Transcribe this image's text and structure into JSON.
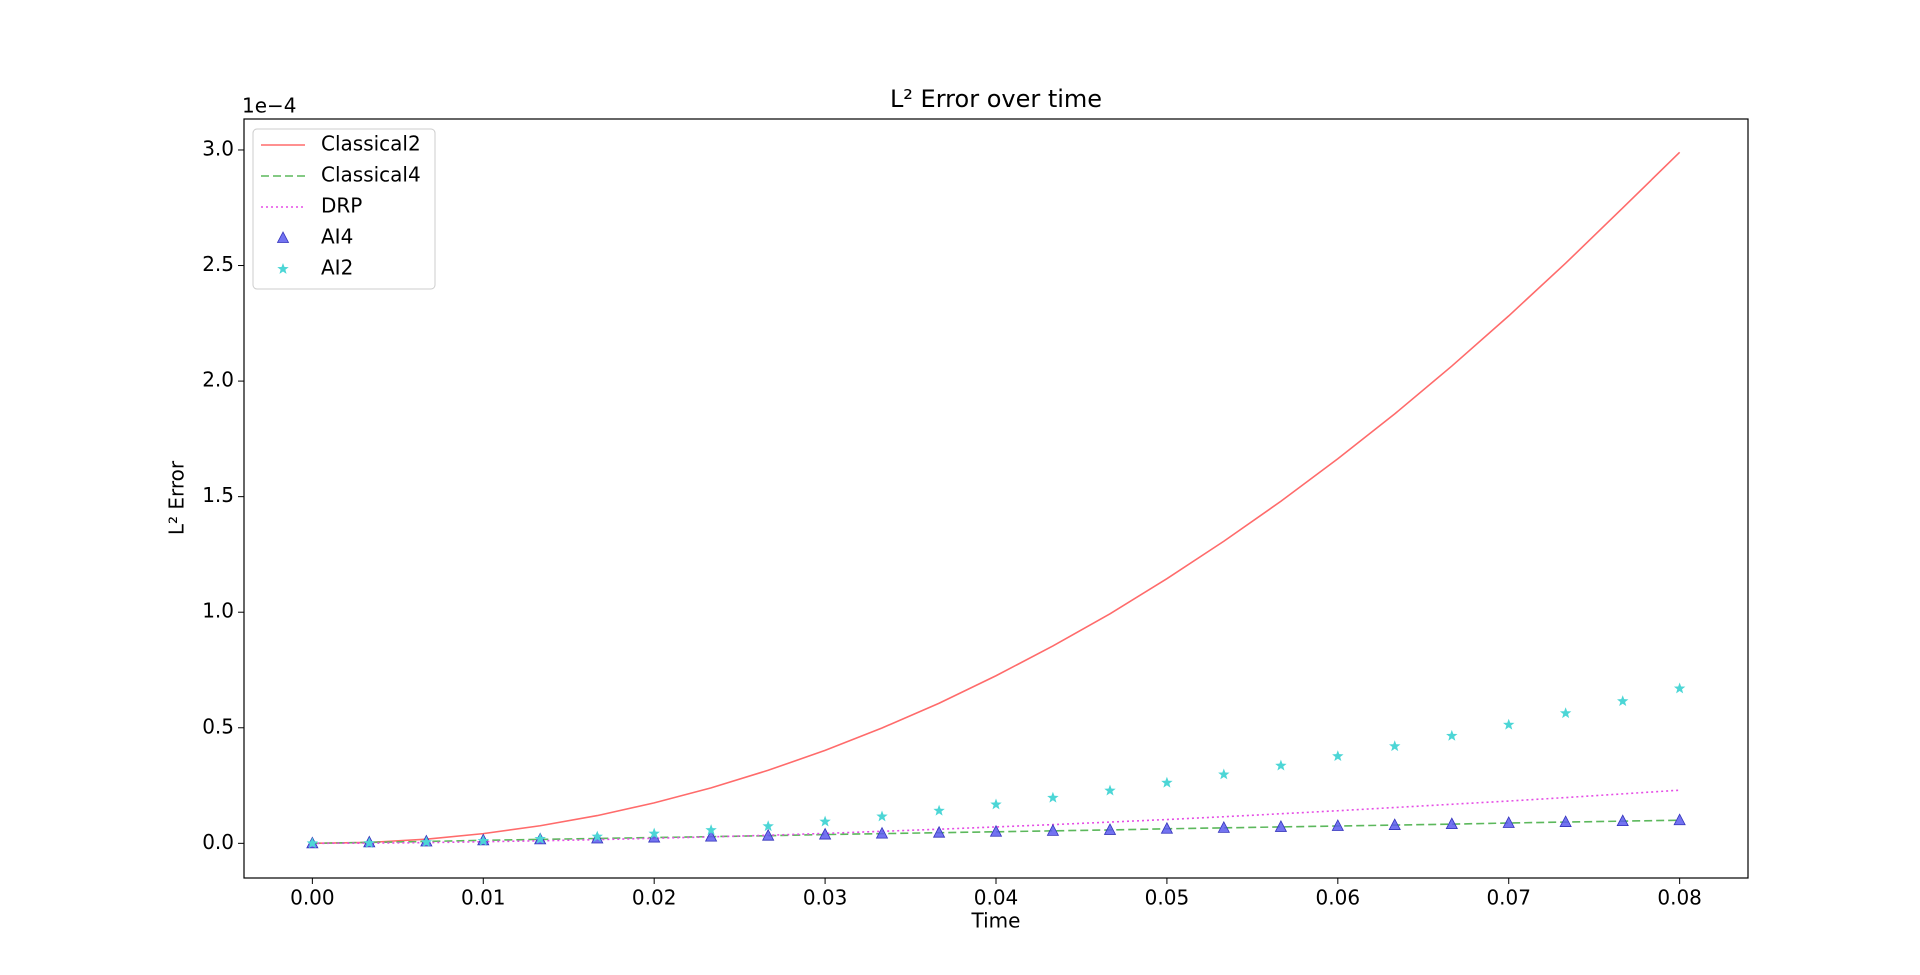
{
  "chart_data": {
    "type": "line",
    "title": "L² Error over time",
    "xlabel": "Time",
    "ylabel": "L² Error",
    "y_offset_label": "1e−4",
    "x": [
      0,
      0.00333,
      0.00667,
      0.01,
      0.01333,
      0.01667,
      0.02,
      0.02333,
      0.02667,
      0.03,
      0.03333,
      0.03667,
      0.04,
      0.04333,
      0.04667,
      0.05,
      0.05333,
      0.05667,
      0.06,
      0.06333,
      0.06667,
      0.07,
      0.07333,
      0.07667,
      0.08
    ],
    "series": [
      {
        "name": "Classical2",
        "color": "#ff6b6b",
        "linestyle": "solid",
        "values": [
          0,
          0.004,
          0.018,
          0.042,
          0.076,
          0.12,
          0.175,
          0.24,
          0.316,
          0.402,
          0.499,
          0.606,
          0.725,
          0.854,
          0.993,
          1.145,
          1.307,
          1.48,
          1.664,
          1.858,
          2.065,
          2.282,
          2.51,
          2.749,
          2.99
        ]
      },
      {
        "name": "Classical4",
        "color": "#5cb85c",
        "linestyle": "dashed",
        "values": [
          0,
          0.004,
          0.008,
          0.013,
          0.017,
          0.021,
          0.025,
          0.029,
          0.033,
          0.038,
          0.042,
          0.046,
          0.05,
          0.054,
          0.058,
          0.063,
          0.067,
          0.071,
          0.075,
          0.079,
          0.083,
          0.088,
          0.092,
          0.096,
          0.1
        ]
      },
      {
        "name": "DRP",
        "color": "#e54de5",
        "linestyle": "dotted",
        "values": [
          0,
          0.001,
          0.003,
          0.007,
          0.011,
          0.016,
          0.022,
          0.028,
          0.035,
          0.043,
          0.052,
          0.061,
          0.071,
          0.081,
          0.092,
          0.103,
          0.115,
          0.128,
          0.141,
          0.155,
          0.169,
          0.183,
          0.198,
          0.214,
          0.23
        ]
      },
      {
        "name": "AI4",
        "color": "#5a5aee",
        "marker": "triangle",
        "values": [
          0,
          0.004,
          0.008,
          0.013,
          0.017,
          0.021,
          0.025,
          0.029,
          0.033,
          0.038,
          0.042,
          0.046,
          0.05,
          0.054,
          0.058,
          0.063,
          0.067,
          0.071,
          0.075,
          0.079,
          0.083,
          0.088,
          0.092,
          0.096,
          0.1
        ]
      },
      {
        "name": "AI2",
        "color": "#4cd6d6",
        "marker": "star",
        "values": [
          0,
          0.001,
          0.005,
          0.01,
          0.019,
          0.029,
          0.042,
          0.057,
          0.074,
          0.094,
          0.116,
          0.141,
          0.168,
          0.197,
          0.228,
          0.262,
          0.298,
          0.336,
          0.377,
          0.42,
          0.465,
          0.513,
          0.563,
          0.615,
          0.67
        ]
      }
    ],
    "xlim": [
      -0.004,
      0.084
    ],
    "ylim": [
      -0.15,
      3.134
    ],
    "xticks": [
      {
        "value": 0,
        "label": "0.00"
      },
      {
        "value": 0.01,
        "label": "0.01"
      },
      {
        "value": 0.02,
        "label": "0.02"
      },
      {
        "value": 0.03,
        "label": "0.03"
      },
      {
        "value": 0.04,
        "label": "0.04"
      },
      {
        "value": 0.05,
        "label": "0.05"
      },
      {
        "value": 0.06,
        "label": "0.06"
      },
      {
        "value": 0.07,
        "label": "0.07"
      },
      {
        "value": 0.08,
        "label": "0.08"
      }
    ],
    "yticks": [
      {
        "value": 0,
        "label": "0.0"
      },
      {
        "value": 0.5,
        "label": "0.5"
      },
      {
        "value": 1,
        "label": "1.0"
      },
      {
        "value": 1.5,
        "label": "1.5"
      },
      {
        "value": 2,
        "label": "2.0"
      },
      {
        "value": 2.5,
        "label": "2.5"
      },
      {
        "value": 3,
        "label": "3.0"
      }
    ],
    "legend": "upper left"
  }
}
